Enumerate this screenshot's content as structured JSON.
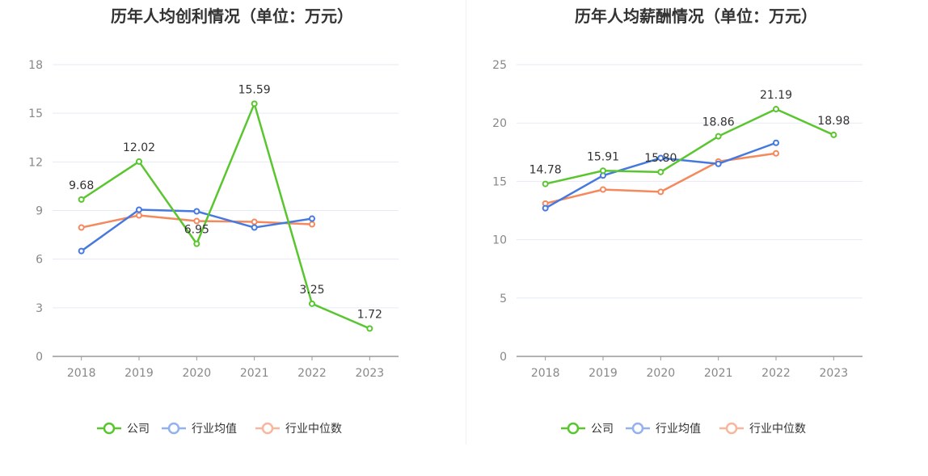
{
  "chart_data": [
    {
      "type": "line",
      "title": "历年人均创利情况（单位：万元）",
      "categories": [
        "2018",
        "2019",
        "2020",
        "2021",
        "2022",
        "2023"
      ],
      "ylim": [
        0,
        18
      ],
      "yticks": [
        "0",
        "3",
        "6",
        "9",
        "12",
        "15",
        "18"
      ],
      "grid": true,
      "legend_position": "bottom",
      "series": [
        {
          "name": "公司",
          "color": "#5ac62f",
          "values": [
            9.68,
            12.02,
            6.95,
            15.59,
            3.25,
            1.72
          ],
          "labels": [
            "9.68",
            "12.02",
            "6.95",
            "15.59",
            "3.25",
            "1.72"
          ]
        },
        {
          "name": "行业均值",
          "color": "#4679e0",
          "values": [
            6.5,
            9.05,
            8.95,
            7.95,
            8.5,
            null
          ]
        },
        {
          "name": "行业中位数",
          "color": "#f4895e",
          "values": [
            7.95,
            8.7,
            8.35,
            8.3,
            8.15,
            null
          ]
        }
      ]
    },
    {
      "type": "line",
      "title": "历年人均薪酬情况（单位：万元）",
      "categories": [
        "2018",
        "2019",
        "2020",
        "2021",
        "2022",
        "2023"
      ],
      "ylim": [
        0,
        25
      ],
      "yticks": [
        "0",
        "5",
        "10",
        "15",
        "20",
        "25"
      ],
      "grid": true,
      "legend_position": "bottom",
      "series": [
        {
          "name": "公司",
          "color": "#5ac62f",
          "values": [
            14.78,
            15.91,
            15.8,
            18.86,
            21.19,
            18.98
          ],
          "labels": [
            "14.78",
            "15.91",
            "15.80",
            "18.86",
            "21.19",
            "18.98"
          ]
        },
        {
          "name": "行业均值",
          "color": "#4679e0",
          "values": [
            12.7,
            15.5,
            17.0,
            16.5,
            18.3,
            null
          ]
        },
        {
          "name": "行业中位数",
          "color": "#f4895e",
          "values": [
            13.1,
            14.3,
            14.1,
            16.7,
            17.4,
            null
          ]
        }
      ]
    }
  ]
}
